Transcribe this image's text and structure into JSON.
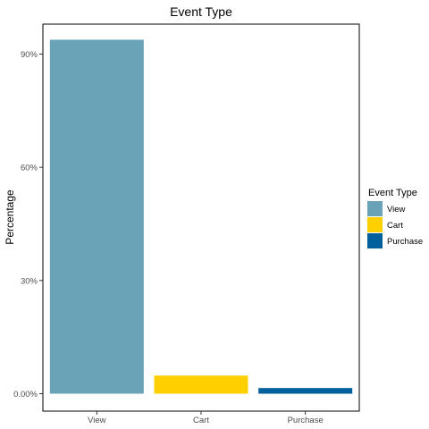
{
  "chart_data": {
    "type": "bar",
    "title": "Event Type",
    "xlabel": "",
    "ylabel": "Percentage",
    "categories": [
      "View",
      "Cart",
      "Purchase"
    ],
    "values": [
      93.8,
      4.8,
      1.5
    ],
    "value_unit": "%",
    "ylim": [
      0,
      100
    ],
    "yticks": [
      0,
      30,
      60,
      90
    ],
    "ytick_labels": [
      "0.00%",
      "30%",
      "60%",
      "90%"
    ],
    "colors": [
      "#6aa3b8",
      "#ffd000",
      "#00609c"
    ],
    "legend": {
      "title": "Event Type",
      "position": "right",
      "entries": [
        "View",
        "Cart",
        "Purchase"
      ]
    },
    "grid": false
  }
}
